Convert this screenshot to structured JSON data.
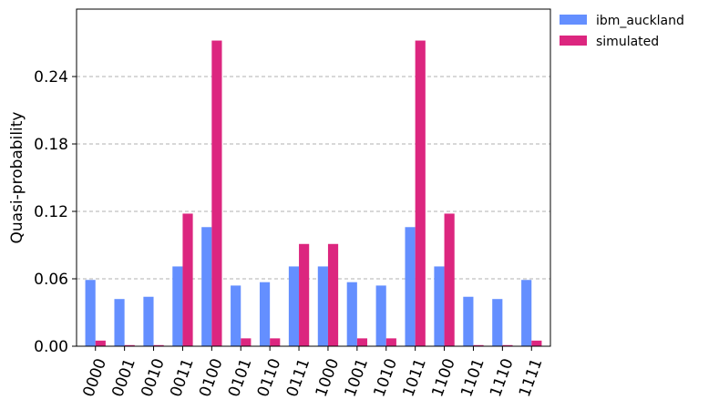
{
  "chart_data": {
    "type": "bar",
    "categories": [
      "0000",
      "0001",
      "0010",
      "0011",
      "0100",
      "0101",
      "0110",
      "0111",
      "1000",
      "1001",
      "1010",
      "1011",
      "1100",
      "1101",
      "1110",
      "1111"
    ],
    "series": [
      {
        "name": "ibm_auckland",
        "color": "#648fff",
        "values": [
          0.059,
          0.042,
          0.044,
          0.071,
          0.106,
          0.054,
          0.057,
          0.071,
          0.071,
          0.057,
          0.054,
          0.106,
          0.071,
          0.044,
          0.042,
          0.059
        ]
      },
      {
        "name": "simulated",
        "color": "#dc267f",
        "values": [
          0.005,
          0.001,
          0.001,
          0.118,
          0.272,
          0.007,
          0.007,
          0.091,
          0.091,
          0.007,
          0.007,
          0.272,
          0.118,
          0.001,
          0.001,
          0.005
        ]
      }
    ],
    "ylabel": "Quasi-probability",
    "xlabel": "",
    "ylim": [
      0,
      0.3
    ],
    "yticks": [
      0.0,
      0.06,
      0.12,
      0.18,
      0.24
    ],
    "ytick_labels": [
      "0.00",
      "0.06",
      "0.12",
      "0.18",
      "0.24"
    ],
    "grid": "horizontal dashed",
    "legend_position": "outside-top-right"
  }
}
